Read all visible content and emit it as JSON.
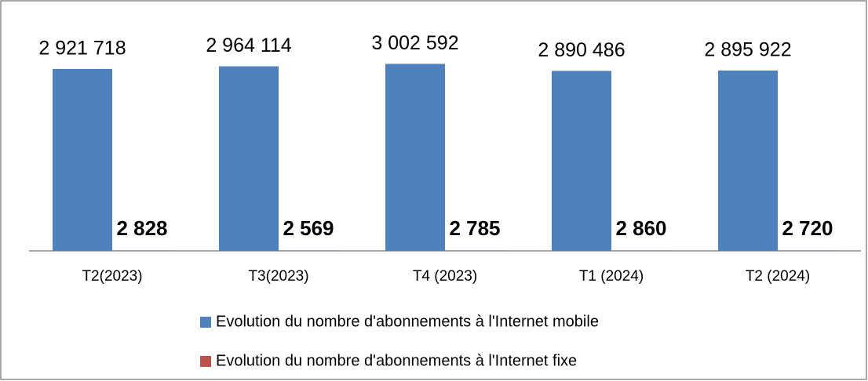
{
  "chart_data": {
    "type": "bar",
    "categories": [
      "T2(2023)",
      "T3(2023)",
      "T4 (2023)",
      "T1 (2024)",
      "T2 (2024)"
    ],
    "series": [
      {
        "name": "Evolution du nombre d'abonnements à l'Internet mobile",
        "color": "#4f81bd",
        "values": [
          2921718,
          2964114,
          3002592,
          2890486,
          2895922
        ],
        "value_labels": [
          "2 921 718",
          "2 964 114",
          "3 002 592",
          "2 890 486",
          "2 895 922"
        ]
      },
      {
        "name": "Evolution du nombre d'abonnements à l'Internet fixe",
        "color": "#c0504d",
        "values": [
          2828,
          2569,
          2785,
          2860,
          2720
        ],
        "value_labels": [
          "2 828",
          "2 569",
          "2 785",
          "2 860",
          "2 720"
        ]
      }
    ],
    "ylim": [
      0,
      3500000
    ]
  }
}
